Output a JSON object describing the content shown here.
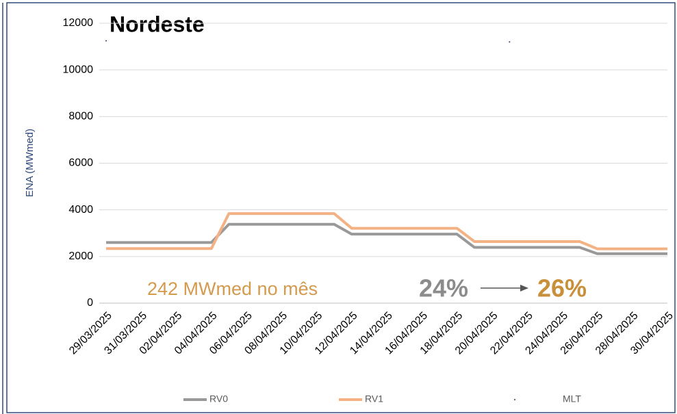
{
  "chart_data": {
    "type": "line",
    "title": "Nordeste",
    "y_label": "ENA (MWmed)",
    "categories": [
      "29/03/2025",
      null,
      "31/03/2025",
      null,
      "02/04/2025",
      null,
      "04/04/2025",
      null,
      "06/04/2025",
      null,
      "08/04/2025",
      null,
      "10/04/2025",
      null,
      "12/04/2025",
      null,
      "14/04/2025",
      null,
      "16/04/2025",
      null,
      "18/04/2025",
      null,
      "20/04/2025",
      null,
      "22/04/2025",
      null,
      "24/04/2025",
      null,
      "26/04/2025",
      null,
      "28/04/2025",
      null,
      "30/04/2025"
    ],
    "series": [
      {
        "name": "RV0",
        "color": "#999999",
        "values": [
          2600,
          2600,
          2600,
          2600,
          2600,
          2600,
          2600,
          3380,
          3380,
          3380,
          3380,
          3380,
          3380,
          3380,
          2960,
          2960,
          2960,
          2960,
          2960,
          2960,
          2960,
          2390,
          2390,
          2390,
          2390,
          2390,
          2390,
          2390,
          2120,
          2120,
          2120,
          2120,
          2120
        ]
      },
      {
        "name": "RV1",
        "color": "#f4b183",
        "values": [
          2340,
          2340,
          2340,
          2340,
          2340,
          2340,
          2340,
          3840,
          3840,
          3840,
          3840,
          3840,
          3840,
          3840,
          3210,
          3210,
          3210,
          3210,
          3210,
          3210,
          3210,
          2640,
          2640,
          2640,
          2640,
          2640,
          2640,
          2640,
          2330,
          2330,
          2330,
          2330,
          2330
        ]
      },
      {
        "name": "MLT",
        "color": "#1f3864",
        "values": [
          11250,
          null,
          null,
          null,
          null,
          null,
          null,
          null,
          null,
          null,
          null,
          null,
          null,
          null,
          null,
          null,
          null,
          null,
          null,
          null,
          null,
          null,
          null,
          11200,
          null,
          null,
          null,
          null,
          null,
          null,
          null,
          null,
          null
        ]
      }
    ],
    "ylim": [
      0,
      12000
    ],
    "yticks": [
      0,
      2000,
      4000,
      6000,
      8000,
      10000,
      12000
    ],
    "grid": true,
    "annotations": [
      "242 MWmed no mês",
      "24%",
      "26%"
    ]
  }
}
